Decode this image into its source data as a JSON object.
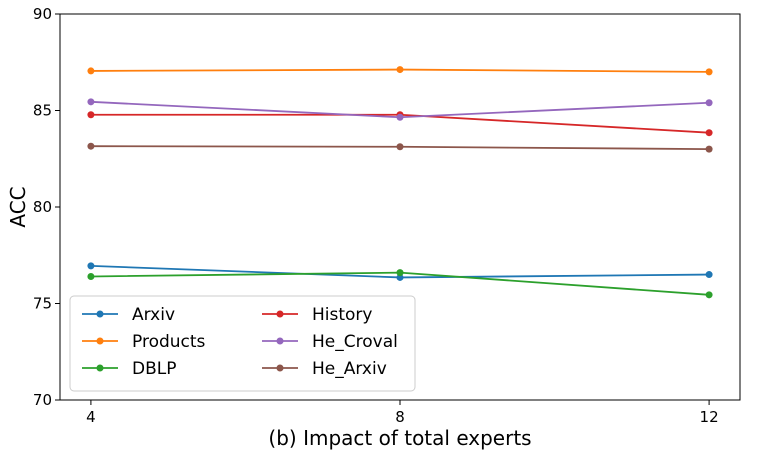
{
  "chart_data": {
    "type": "line",
    "title": "",
    "xlabel": "(b) Impact of total experts",
    "ylabel": "ACC",
    "x": [
      4,
      8,
      12
    ],
    "xticks": [
      4,
      8,
      12
    ],
    "yticks": [
      70,
      75,
      80,
      85,
      90
    ],
    "xlim": [
      3.6,
      12.4
    ],
    "ylim": [
      70,
      90
    ],
    "grid": false,
    "legend_position": "lower-left",
    "legend_columns": 2,
    "series": [
      {
        "name": "Arxiv",
        "color": "#1f77b4",
        "values": [
          76.95,
          76.35,
          76.5
        ]
      },
      {
        "name": "Products",
        "color": "#ff7f0e",
        "values": [
          87.05,
          87.12,
          87.0
        ]
      },
      {
        "name": "DBLP",
        "color": "#2ca02c",
        "values": [
          76.4,
          76.6,
          75.45
        ]
      },
      {
        "name": "History",
        "color": "#d62728",
        "values": [
          84.78,
          84.78,
          83.85
        ]
      },
      {
        "name": "He_Croval",
        "color": "#9467bd",
        "values": [
          85.45,
          84.65,
          85.4
        ]
      },
      {
        "name": "He_Arxiv",
        "color": "#8c564b",
        "values": [
          83.15,
          83.12,
          83.0
        ]
      }
    ]
  }
}
